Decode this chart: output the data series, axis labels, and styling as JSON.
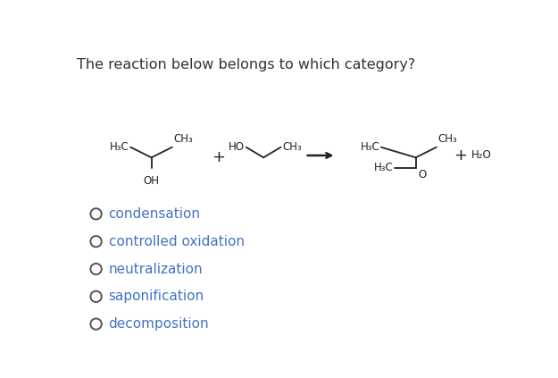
{
  "title": "The reaction below belongs to which category?",
  "title_color": "#333333",
  "title_fontsize": 11.5,
  "bg_color": "#ffffff",
  "options": [
    "condensation",
    "controlled oxidation",
    "neutralization",
    "saponification",
    "decomposition"
  ],
  "option_color": "#4472c4",
  "option_fontsize": 11,
  "circle_color": "#555555",
  "chem_color": "#222222",
  "chem_lw": 1.3,
  "chem_fontsize": 8.5,
  "sub_fontsize": 6.5
}
